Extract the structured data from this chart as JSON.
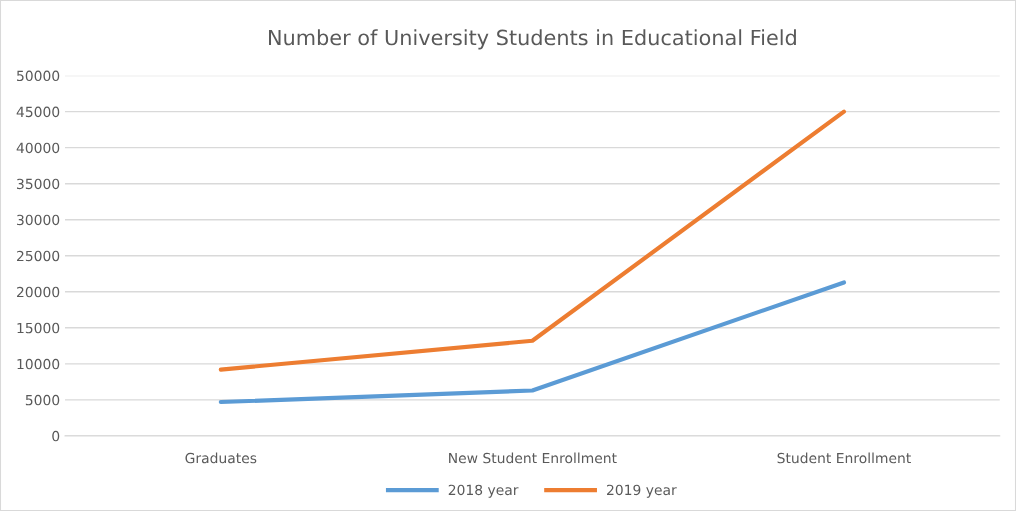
{
  "chart_data": {
    "type": "line",
    "title": "Number of University Students in Educational Field",
    "categories": [
      "Graduates",
      "New Student Enrollment",
      "Student Enrollment"
    ],
    "series": [
      {
        "name": "2018 year",
        "color": "#5b9bd5",
        "values": [
          4700,
          6300,
          21300
        ]
      },
      {
        "name": "2019 year",
        "color": "#ed7d31",
        "values": [
          9200,
          13200,
          45000
        ]
      }
    ],
    "ylim": [
      0,
      50000
    ],
    "yticks": [
      0,
      5000,
      10000,
      15000,
      20000,
      25000,
      30000,
      35000,
      40000,
      45000,
      50000
    ],
    "grid": "y",
    "legend": "bottom",
    "marker": "none",
    "line_style": "solid"
  }
}
